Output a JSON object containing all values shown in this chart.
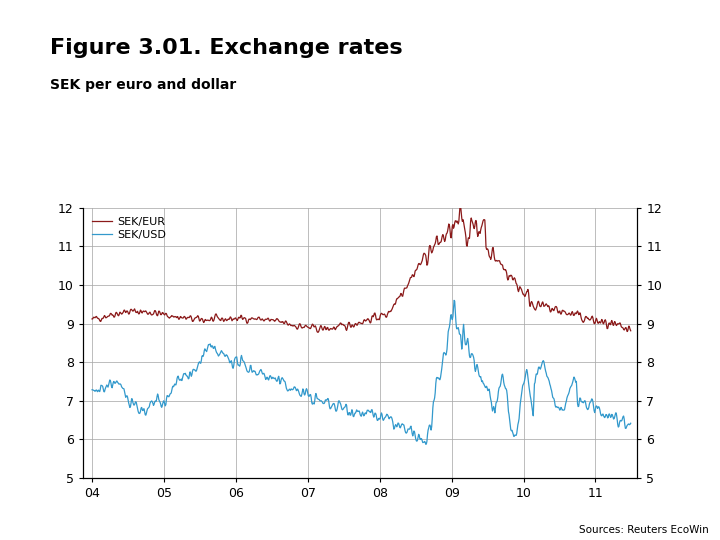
{
  "title": "Figure 3.01. Exchange rates",
  "subtitle": "SEK per euro and dollar",
  "source": "Sources: Reuters EcoWin",
  "line_eur_color": "#8B1A1A",
  "line_usd_color": "#3399CC",
  "background_color": "#FFFFFF",
  "plot_bg_color": "#FFFFFF",
  "grid_color": "#AAAAAA",
  "footer_color": "#1A3A6B",
  "ylim": [
    5,
    12
  ],
  "yticks": [
    5,
    6,
    7,
    8,
    9,
    10,
    11,
    12
  ],
  "xtick_labels": [
    "04",
    "05",
    "06",
    "07",
    "08",
    "09",
    "10",
    "11"
  ],
  "legend_labels": [
    "SEK/EUR",
    "SEK/USD"
  ],
  "title_fontsize": 16,
  "subtitle_fontsize": 10,
  "axis_fontsize": 9,
  "legend_fontsize": 8
}
